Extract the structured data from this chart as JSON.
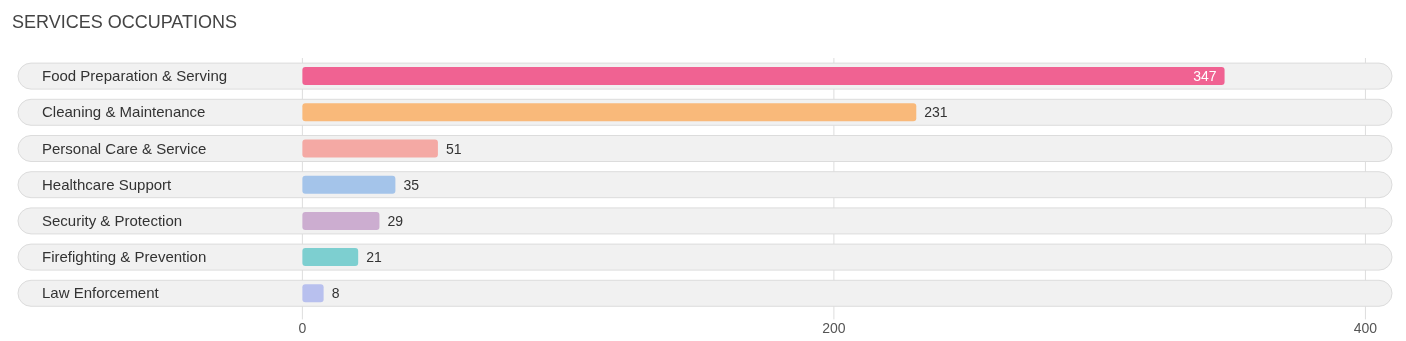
{
  "chart_data": {
    "type": "bar",
    "orientation": "horizontal",
    "title": "SERVICES OCCUPATIONS",
    "categories": [
      "Food Preparation & Serving",
      "Cleaning & Maintenance",
      "Personal Care & Service",
      "Healthcare Support",
      "Security & Protection",
      "Firefighting & Prevention",
      "Law Enforcement"
    ],
    "values": [
      347,
      231,
      51,
      35,
      29,
      21,
      8
    ],
    "colors": [
      "#f06292",
      "#f9b97a",
      "#f4a9a4",
      "#a4c4ea",
      "#ccadd0",
      "#7dcfd0",
      "#b8c0ee"
    ],
    "xlim": [
      -107,
      410
    ],
    "xticks": [
      0,
      200,
      400
    ],
    "grid": "x",
    "data_labels": true
  }
}
